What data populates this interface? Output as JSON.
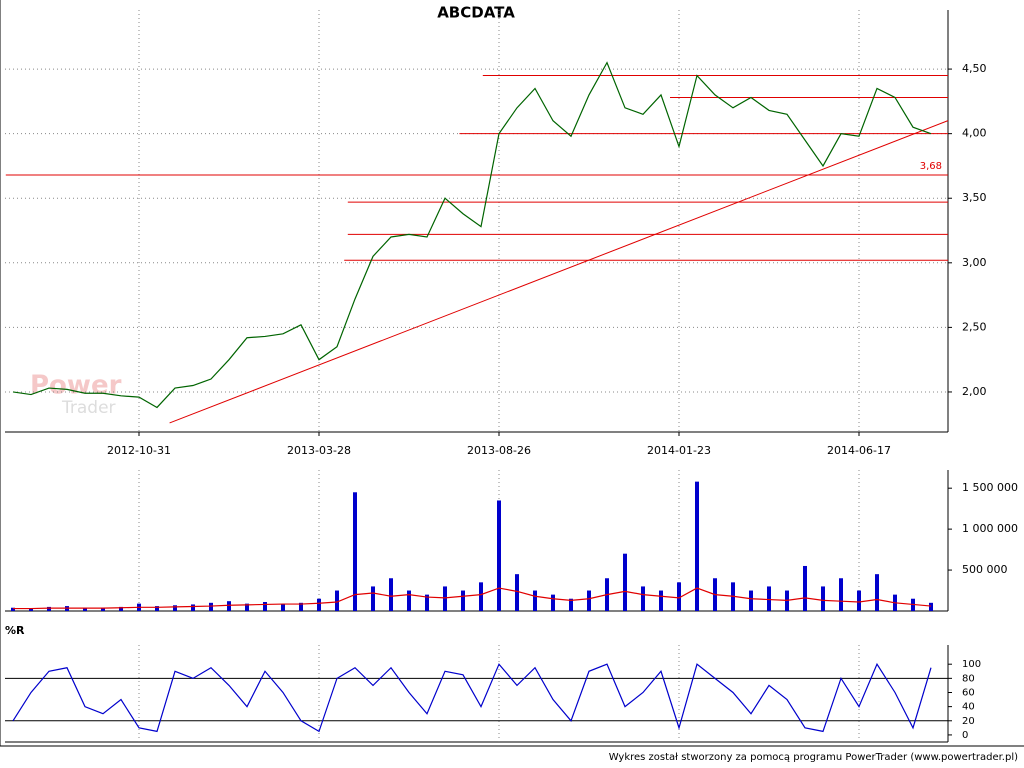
{
  "footer": "Wykres został stworzony za pomocą programu PowerTrader (www.powertrader.pl)",
  "watermark": [
    "Power",
    "Trader"
  ],
  "chart_data": [
    {
      "type": "line",
      "title": "ABCDATA",
      "categories": [
        null,
        null,
        null,
        null,
        null,
        null,
        null,
        "2012-10-31",
        null,
        null,
        null,
        null,
        null,
        null,
        null,
        null,
        null,
        "2013-03-28",
        null,
        null,
        null,
        null,
        null,
        null,
        null,
        null,
        null,
        "2013-08-26",
        null,
        null,
        null,
        null,
        null,
        null,
        null,
        null,
        null,
        "2014-01-23",
        null,
        null,
        null,
        null,
        null,
        null,
        null,
        null,
        null,
        "2014-06-17",
        null,
        null,
        null,
        null
      ],
      "series": [
        {
          "color": "#006400",
          "values": [
            2.0,
            1.98,
            2.03,
            2.02,
            1.99,
            1.99,
            1.97,
            1.96,
            1.88,
            2.03,
            2.05,
            2.1,
            2.25,
            2.42,
            2.43,
            2.45,
            2.52,
            2.25,
            2.35,
            2.72,
            3.05,
            3.2,
            3.22,
            3.2,
            3.5,
            3.38,
            3.28,
            4.0,
            4.2,
            4.35,
            4.1,
            3.98,
            4.3,
            4.55,
            4.2,
            4.15,
            4.3,
            3.9,
            4.45,
            4.3,
            4.2,
            4.28,
            4.18,
            4.15,
            3.95,
            3.75,
            4.0,
            3.98,
            4.35,
            4.28,
            4.05,
            4.0
          ]
        }
      ],
      "ylim": [
        1.69,
        4.88
      ],
      "yticks": [
        {
          "value": 2.0,
          "label": "2,00"
        },
        {
          "value": 2.5,
          "label": "2,50"
        },
        {
          "value": 3.0,
          "label": "3,00"
        },
        {
          "value": 3.5,
          "label": "3,50"
        },
        {
          "value": 4.0,
          "label": "4,00"
        },
        {
          "value": 4.5,
          "label": "4,50"
        }
      ],
      "grid": true,
      "hline_color": "#e00000",
      "hlines": [
        {
          "value": 4.45,
          "from": 26.1
        },
        {
          "value": 4.28,
          "from": 36.5
        },
        {
          "value": 4.0,
          "from": 24.8
        },
        {
          "value": 3.68,
          "from": -0.4
        },
        {
          "value": 3.47,
          "from": 18.6
        },
        {
          "value": 3.22,
          "from": 18.6
        },
        {
          "value": 3.02,
          "from": 18.4
        }
      ],
      "trendline": {
        "x": [
          8.7,
          52.3
        ],
        "values": [
          1.76,
          4.12
        ]
      },
      "annotation": {
        "text": "3,68",
        "value": 3.68
      }
    },
    {
      "type": "bar",
      "series": [
        {
          "color": "#0000cc",
          "values": [
            40000,
            30000,
            50000,
            60000,
            40000,
            40000,
            50000,
            90000,
            60000,
            70000,
            80000,
            100000,
            120000,
            90000,
            110000,
            80000,
            100000,
            150000,
            250000,
            1450000,
            300000,
            400000,
            250000,
            200000,
            300000,
            250000,
            350000,
            1350000,
            450000,
            250000,
            200000,
            150000,
            250000,
            400000,
            700000,
            300000,
            250000,
            350000,
            1580000,
            400000,
            350000,
            250000,
            300000,
            250000,
            550000,
            300000,
            400000,
            250000,
            450000,
            200000,
            150000,
            100000
          ]
        },
        {
          "color": "#e00000",
          "values": [
            30000,
            30000,
            35000,
            35000,
            35000,
            35000,
            40000,
            45000,
            45000,
            50000,
            55000,
            60000,
            70000,
            75000,
            80000,
            85000,
            85000,
            95000,
            110000,
            200000,
            220000,
            180000,
            200000,
            170000,
            160000,
            180000,
            200000,
            280000,
            240000,
            180000,
            150000,
            130000,
            150000,
            200000,
            240000,
            200000,
            180000,
            160000,
            280000,
            200000,
            180000,
            150000,
            140000,
            130000,
            160000,
            130000,
            120000,
            110000,
            140000,
            100000,
            80000,
            60000
          ]
        }
      ],
      "ylim": [
        0,
        1600000
      ],
      "yticks": [
        {
          "value": 500000,
          "label": "500 000"
        },
        {
          "value": 1000000,
          "label": "1 000 000"
        },
        {
          "value": 1500000,
          "label": "1 500 000"
        }
      ]
    },
    {
      "type": "line",
      "title": "%R",
      "series": [
        {
          "color": "#0000cc",
          "values": [
            20,
            60,
            90,
            95,
            40,
            30,
            50,
            10,
            5,
            90,
            80,
            95,
            70,
            40,
            90,
            60,
            20,
            5,
            80,
            95,
            70,
            95,
            60,
            30,
            90,
            85,
            40,
            100,
            70,
            95,
            50,
            20,
            90,
            100,
            40,
            60,
            90,
            10,
            100,
            80,
            60,
            30,
            70,
            50,
            10,
            5,
            80,
            40,
            100,
            60,
            10,
            95
          ]
        }
      ],
      "ylim": [
        -10,
        113
      ],
      "yticks": [
        0,
        20,
        40,
        60,
        80,
        100
      ],
      "levels": [
        20,
        80
      ]
    }
  ]
}
